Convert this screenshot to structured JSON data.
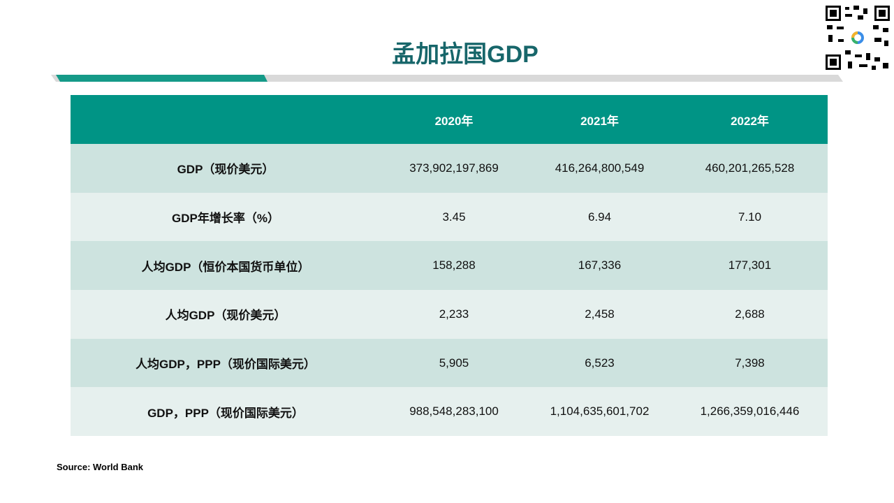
{
  "header": {
    "title": "孟加拉国GDP"
  },
  "table": {
    "columns": [
      "2020年",
      "2021年",
      "2022年"
    ],
    "rows": [
      [
        "GDP（现价美元）",
        "373,902,197,869",
        "416,264,800,549",
        "460,201,265,528"
      ],
      [
        "GDP年增长率（%）",
        "3.45",
        "6.94",
        "7.10"
      ],
      [
        "人均GDP（恒价本国货币单位）",
        "158,288",
        "167,336",
        "177,301"
      ],
      [
        "人均GDP（现价美元）",
        "2,233",
        "2,458",
        "2,688"
      ],
      [
        "人均GDP，PPP（现价国际美元）",
        "5,905",
        "6,523",
        "7,398"
      ],
      [
        "GDP，PPP（现价国际美元）",
        "988,548,283,100",
        "1,104,635,601,702",
        "1,266,359,016,446"
      ]
    ]
  },
  "footer": {
    "source": "Source: World Bank"
  }
}
